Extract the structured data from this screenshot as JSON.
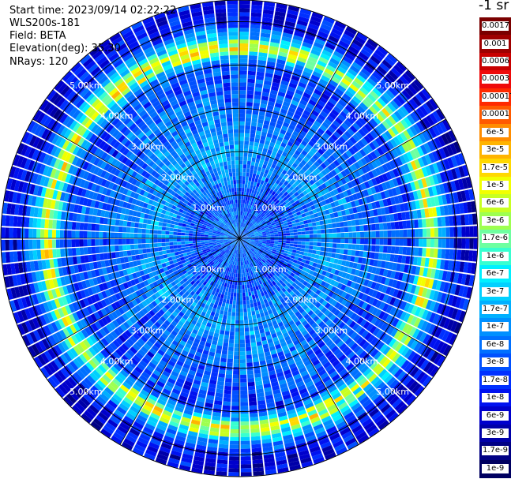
{
  "header": {
    "start_time": "Start time: 2023/09/14 02:22:22",
    "instrument": "WLS200s-181",
    "field": "Field: BETA",
    "elevation": "Elevation(deg): 35.30",
    "nrays": "NRays: 120"
  },
  "colorbar": {
    "title": "-1 sr",
    "labels": [
      "0.0017",
      "0.001",
      "0.0006",
      "0.0003",
      "0.00017",
      "0.0001",
      "6e-5",
      "3e-5",
      "1.7e-5",
      "1e-5",
      "6e-6",
      "3e-6",
      "1.7e-6",
      "1e-6",
      "6e-7",
      "3e-7",
      "1.7e-7",
      "1e-7",
      "6e-8",
      "3e-8",
      "1.7e-8",
      "1e-8",
      "6e-9",
      "3e-9",
      "1.7e-9",
      "1e-9"
    ],
    "colors": [
      "#7a0000",
      "#9e0000",
      "#c80000",
      "#ee0a0a",
      "#ff2a00",
      "#ff5a00",
      "#ff8c00",
      "#ffb400",
      "#ffd800",
      "#f2ff00",
      "#c8ff22",
      "#9eff50",
      "#6effa0",
      "#38ffd0",
      "#00f0ff",
      "#00d0ff",
      "#00b0ff",
      "#0090ff",
      "#0070ff",
      "#0050ff",
      "#0030ff",
      "#0012f0",
      "#0000cc",
      "#0000a8",
      "#000084",
      "#000060"
    ]
  },
  "chart_data": {
    "type": "heatmap",
    "projection": "polar PPI",
    "n_rays": 120,
    "max_range_km": 5.5,
    "range_rings_km": [
      1,
      2,
      3,
      4,
      5
    ],
    "ring_labels": [
      "1.00km",
      "2.00km",
      "3.00km",
      "4.00km",
      "5.00km"
    ],
    "azimuth_lines_deg": [
      0,
      30,
      60,
      90,
      120,
      150,
      180,
      210,
      240,
      270,
      300,
      330
    ],
    "value_profile": [
      {
        "range_km": 0.3,
        "beta_log10": -7.2
      },
      {
        "range_km": 1.0,
        "beta_log10": -7.5
      },
      {
        "range_km": 2.0,
        "beta_log10": -6.9
      },
      {
        "range_km": 3.0,
        "beta_log10": -7.3
      },
      {
        "range_km": 4.0,
        "beta_log10": -7.6
      },
      {
        "range_km": 4.4,
        "beta_log10": -5.6
      },
      {
        "range_km": 5.0,
        "beta_log10": -7.9
      },
      {
        "range_km": 5.5,
        "beta_log10": -8.1
      }
    ]
  }
}
